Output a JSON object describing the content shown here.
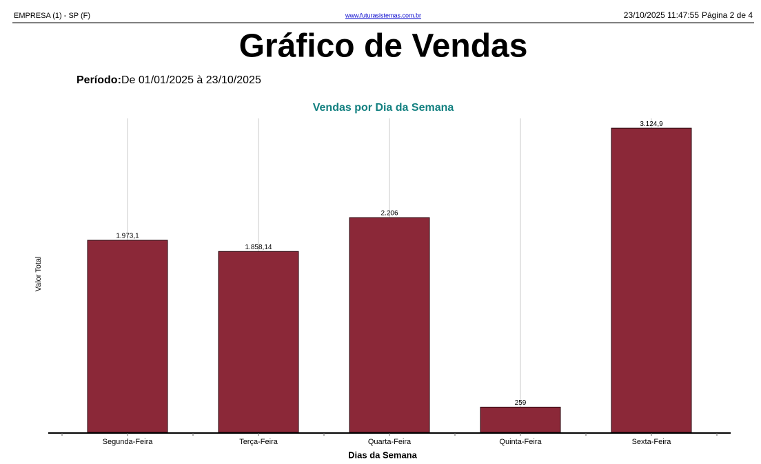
{
  "header": {
    "company": "EMPRESA (1) - SP (F)",
    "website": "www.futurasistemas.com.br",
    "datetime": "23/10/2025 11:47:55",
    "page": "Página 2 de 4"
  },
  "report": {
    "title": "Gráfico de Vendas",
    "period_label": "Período:",
    "period": "De 01/01/2025 à 23/10/2025"
  },
  "chart_data": {
    "type": "bar",
    "title": "Vendas por Dia da Semana",
    "x_label": "Dias da Semana",
    "y_label": "Valor Total",
    "categories": [
      "Segunda-Feira",
      "Terça-Feira",
      "Quarta-Feira",
      "Quinta-Feira",
      "Sexta-Feira"
    ],
    "values": [
      1973.1,
      1858.14,
      2206,
      259,
      3124.9
    ],
    "value_labels": [
      "1.973,1",
      "1.858,14",
      "2.206",
      "259",
      "3.124,9"
    ],
    "color": "#8b2838",
    "ylim": [
      0,
      3225
    ],
    "grid": true
  }
}
